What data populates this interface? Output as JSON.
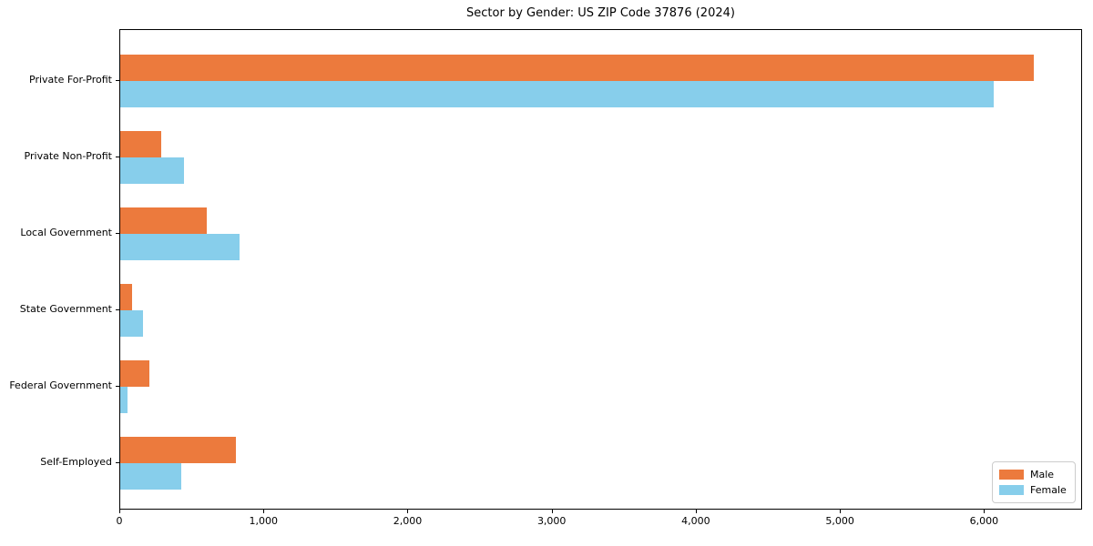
{
  "title": "Sector by Gender: US ZIP Code 37876 (2024)",
  "chart_data": {
    "type": "bar",
    "orientation": "horizontal",
    "title": "Sector by Gender: US ZIP Code 37876 (2024)",
    "xlabel": "",
    "ylabel": "",
    "categories": [
      "Private For-Profit",
      "Private Non-Profit",
      "Local Government",
      "State Government",
      "Federal Government",
      "Self-Employed"
    ],
    "series": [
      {
        "name": "Male",
        "color": "#ec7a3d",
        "values": [
          6340,
          285,
          600,
          80,
          200,
          800
        ]
      },
      {
        "name": "Female",
        "color": "#87ceeb",
        "values": [
          6060,
          440,
          825,
          155,
          50,
          425
        ]
      }
    ],
    "xlim": [
      0,
      6680
    ],
    "x_ticks": [
      0,
      1000,
      2000,
      3000,
      4000,
      5000,
      6000
    ],
    "x_tick_labels": [
      "0",
      "1,000",
      "2,000",
      "3,000",
      "4,000",
      "5,000",
      "6,000"
    ],
    "grid": false,
    "legend_position": "lower right"
  },
  "legend": {
    "items": [
      {
        "label": "Male",
        "color": "#ec7a3d"
      },
      {
        "label": "Female",
        "color": "#87ceeb"
      }
    ]
  }
}
